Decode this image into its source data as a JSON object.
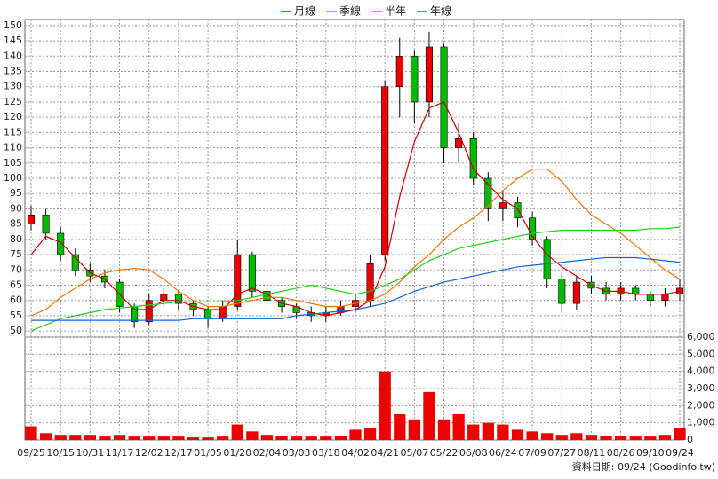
{
  "chart_data": {
    "type": "candlestick",
    "legend_position": "top",
    "footer": "資料日期: 09/24  (Goodinfo.tw)",
    "categories": [
      "09/25",
      null,
      "10/15",
      null,
      "10/31",
      null,
      "11/17",
      null,
      "12/02",
      null,
      "12/17",
      null,
      "01/05",
      null,
      "01/20",
      null,
      "02/04",
      null,
      "03/03",
      null,
      "03/18",
      null,
      "04/02",
      null,
      "04/21",
      null,
      "05/07",
      null,
      "05/22",
      null,
      "06/08",
      null,
      "06/24",
      null,
      "07/09",
      null,
      "07/27",
      null,
      "08/11",
      null,
      "08/26",
      null,
      "09/10",
      null,
      "09/24"
    ],
    "open": [
      85,
      88,
      82,
      75,
      70,
      68,
      66,
      58,
      53,
      60,
      62,
      59,
      57,
      54,
      58,
      75,
      63,
      60,
      58,
      56,
      55,
      56,
      58,
      60,
      75,
      130,
      140,
      125,
      143,
      110,
      113,
      100,
      90,
      92,
      87,
      80,
      67,
      59,
      66,
      64,
      62,
      64,
      62,
      60,
      62
    ],
    "high": [
      91,
      90,
      84,
      77,
      72,
      70,
      67,
      59,
      62,
      64,
      63,
      60,
      58,
      60,
      80,
      76,
      65,
      61,
      59,
      58,
      58,
      60,
      62,
      75,
      132,
      146,
      142,
      148,
      144,
      118,
      115,
      102,
      96,
      94,
      89,
      81,
      69,
      68,
      68,
      66,
      66,
      65,
      63,
      64,
      67
    ],
    "low": [
      83,
      80,
      73,
      68,
      66,
      64,
      56,
      51,
      52,
      58,
      57,
      55,
      51,
      53,
      57,
      61,
      58,
      56,
      54,
      53,
      53,
      55,
      56,
      58,
      73,
      120,
      118,
      120,
      105,
      105,
      98,
      86,
      86,
      84,
      78,
      64,
      56,
      57,
      62,
      60,
      60,
      60,
      58,
      58,
      60
    ],
    "close": [
      88,
      82,
      75,
      70,
      68,
      66,
      58,
      53,
      60,
      62,
      59,
      57,
      54,
      58,
      75,
      63,
      60,
      58,
      56,
      55,
      56,
      58,
      60,
      72,
      130,
      140,
      125,
      143,
      110,
      113,
      100,
      90,
      92,
      87,
      80,
      67,
      59,
      66,
      64,
      62,
      64,
      62,
      60,
      62,
      64
    ],
    "up_color": "#ee0000",
    "down_color": "#00bb00",
    "series": [
      {
        "name": "月線",
        "color": "#cc0000",
        "values": [
          75,
          81,
          79,
          74,
          69,
          67,
          62,
          57,
          57,
          60,
          60,
          58,
          57,
          57,
          62,
          64,
          62,
          59,
          58,
          56,
          55,
          56,
          57,
          60,
          71,
          94,
          112,
          123,
          125,
          115,
          103,
          98,
          93,
          90,
          81,
          75,
          71,
          68,
          65,
          63,
          63,
          62,
          62,
          62,
          63
        ]
      },
      {
        "name": "季線",
        "color": "#ee7700",
        "values": [
          55,
          57,
          61,
          64,
          67,
          69,
          70,
          70.5,
          70,
          67,
          63,
          60,
          58,
          58,
          59,
          60,
          61,
          61,
          60,
          59,
          58,
          58,
          59,
          60,
          62,
          66,
          71,
          75,
          80,
          84,
          87,
          91,
          96,
          100,
          103,
          103,
          99,
          93,
          88,
          85,
          82,
          78,
          74,
          70,
          67
        ]
      },
      {
        "name": "半年",
        "color": "#22cc22",
        "values": [
          50,
          52,
          54,
          55,
          56,
          57,
          57.5,
          58,
          58.5,
          59,
          59.5,
          59.5,
          59.5,
          59.5,
          60,
          61,
          62,
          63,
          64,
          65,
          64,
          63,
          62,
          63,
          65,
          67,
          70,
          73,
          75,
          77,
          78,
          79,
          80,
          81,
          82,
          82.5,
          83,
          83,
          83,
          83,
          83,
          83,
          83.5,
          83.5,
          84
        ]
      },
      {
        "name": "年線",
        "color": "#1166cc",
        "values": [
          53.5,
          53.5,
          53.5,
          53.5,
          53.5,
          53.5,
          53.5,
          53.5,
          53.5,
          53.5,
          53.5,
          54,
          54,
          54,
          54,
          54,
          54,
          54,
          55,
          55.5,
          56,
          56.5,
          57,
          58,
          59,
          61,
          63,
          64.5,
          66,
          67,
          68,
          69,
          70,
          71,
          71.5,
          72,
          72.5,
          73,
          73.5,
          74,
          74,
          74,
          73.5,
          73,
          72.5
        ]
      }
    ],
    "volume": {
      "color": "#ee0000",
      "axis": "y2",
      "values": [
        800,
        400,
        300,
        300,
        300,
        200,
        300,
        200,
        200,
        200,
        200,
        150,
        150,
        200,
        900,
        500,
        300,
        250,
        200,
        200,
        200,
        250,
        600,
        700,
        4000,
        1500,
        1200,
        2800,
        1200,
        1500,
        900,
        1000,
        900,
        600,
        500,
        400,
        300,
        400,
        300,
        250,
        250,
        200,
        200,
        300,
        700
      ]
    },
    "ylim": [
      48,
      152
    ],
    "yticks": [
      50,
      55,
      60,
      65,
      70,
      75,
      80,
      85,
      90,
      95,
      100,
      105,
      110,
      115,
      120,
      125,
      130,
      135,
      140,
      145,
      150
    ],
    "y2lim": [
      0,
      6000
    ],
    "y2ticks": [
      0,
      {
        "value": 1000,
        "label": "1,000"
      },
      {
        "value": 2000,
        "label": "2,000"
      },
      {
        "value": 3000,
        "label": "3,000"
      },
      {
        "value": 4000,
        "label": "4,000"
      },
      {
        "value": 5000,
        "label": "5,000"
      },
      {
        "value": 6000,
        "label": "6,000"
      }
    ],
    "grid": true
  }
}
